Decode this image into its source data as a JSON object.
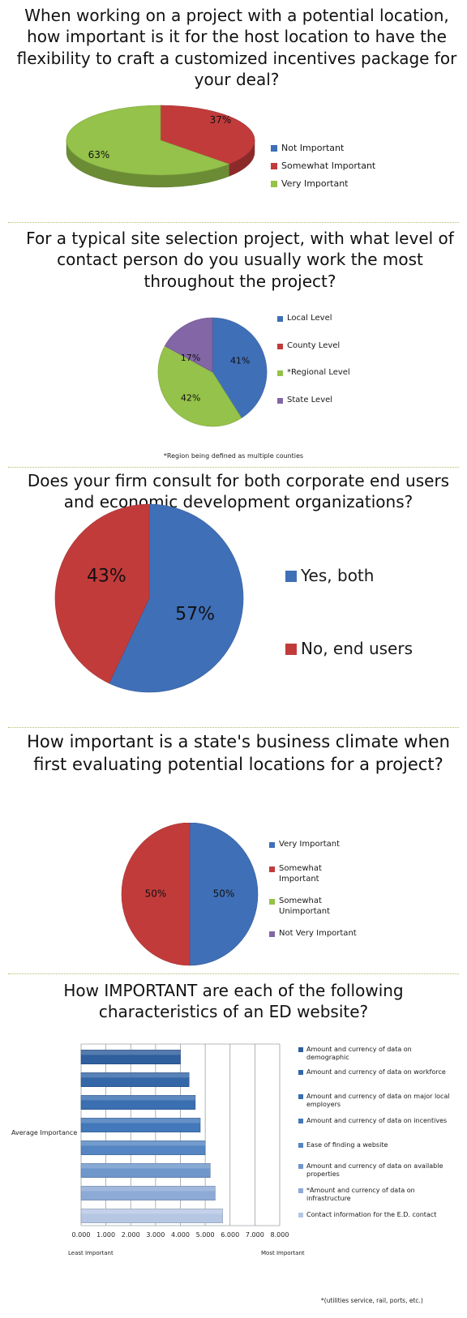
{
  "colors": {
    "blue": "#3f6fb7",
    "red": "#c23b3b",
    "green": "#95c24a",
    "purple": "#8366a6",
    "divider": "#b7ba6a"
  },
  "chart_data": [
    {
      "type": "pie",
      "title": "When working on a project with a potential location, how important is it for the host location to have the flexibility to craft a customized incentives package for your deal?",
      "categories": [
        "Not Important",
        "Somewhat Important",
        "Very Important"
      ],
      "values": [
        0,
        37,
        63
      ],
      "data_labels": [
        "",
        "37%",
        "63%"
      ],
      "legend": "right"
    },
    {
      "type": "pie",
      "title": "For a typical site selection project, with what level of contact person do you usually work the most throughout the project?",
      "categories": [
        "Local Level",
        "County Level",
        "*Regional Level",
        "State Level"
      ],
      "values": [
        41,
        0,
        42,
        17
      ],
      "data_labels": [
        "41%",
        "",
        "42%",
        "17%"
      ],
      "legend": "right",
      "footnote": "*Region being defined as multiple counties"
    },
    {
      "type": "pie",
      "title": "Does your firm consult for both corporate end users and economic development organizations?",
      "categories": [
        "Yes, both",
        "No, end users"
      ],
      "values": [
        57,
        43
      ],
      "data_labels": [
        "57%",
        "43%"
      ],
      "legend": "right"
    },
    {
      "type": "pie",
      "title": "How important is a state's business climate when first evaluating potential locations for a project?",
      "categories": [
        "Very Important",
        "Somewhat Important",
        "Somewhat Unimportant",
        "Not Very Important"
      ],
      "values": [
        50,
        50,
        0,
        0
      ],
      "data_labels": [
        "50%",
        "50%",
        "",
        ""
      ],
      "legend": "right"
    },
    {
      "type": "bar",
      "orientation": "horizontal",
      "title": "How IMPORTANT are each of the following characteristics of an ED website?",
      "ylabel": "Average Importance",
      "series": [
        {
          "name": "Amount and currency of data on demographic",
          "value": 4.0
        },
        {
          "name": "Amount and currency of data on workforce",
          "value": 4.35
        },
        {
          "name": "Amount and currency of data on major local employers",
          "value": 4.6
        },
        {
          "name": "Amount and currency of data on incentives",
          "value": 4.8
        },
        {
          "name": "Ease of finding a website",
          "value": 5.0
        },
        {
          "name": "Amount and currency of data on available properties",
          "value": 5.2
        },
        {
          "name": "*Amount and currency of data on infrastructure",
          "value": 5.4
        },
        {
          "name": "Contact information for the E.D. contact",
          "value": 5.7
        }
      ],
      "xlim": [
        0,
        8
      ],
      "xticks": [
        "0.000",
        "1.000",
        "2.000",
        "3.000",
        "4.000",
        "5.000",
        "6.000",
        "7.000",
        "8.000"
      ],
      "x_left_label": "Least Important",
      "x_right_label": "Most Important",
      "footnote": "*(utilities service, rail, ports, etc.)",
      "grid": true,
      "legend": "right"
    }
  ]
}
